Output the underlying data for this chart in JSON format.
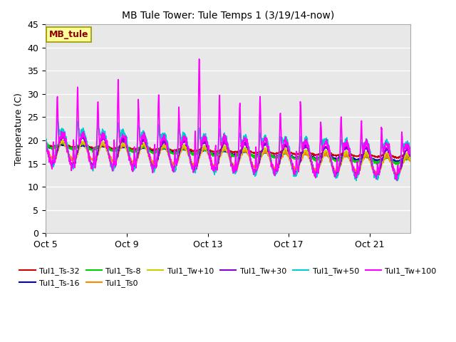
{
  "title": "MB Tule Tower: Tule Temps 1 (3/19/14-now)",
  "ylabel": "Temperature (C)",
  "ylim": [
    0,
    45
  ],
  "yticks": [
    0,
    5,
    10,
    15,
    20,
    25,
    30,
    35,
    40,
    45
  ],
  "x_start_day": 5.0,
  "n_days": 18,
  "xtick_days": [
    5,
    9,
    13,
    17,
    21
  ],
  "xtick_labels": [
    "Oct 5",
    "Oct 9",
    "Oct 13",
    "Oct 17",
    "Oct 21"
  ],
  "annotation_text": "MB_tule",
  "annotation_color": "#8B0000",
  "annotation_bg": "#FFFF99",
  "annotation_border": "#999900",
  "background_plot": "#E8E8E8",
  "background_fig": "#FFFFFF",
  "grid_color": "#FFFFFF",
  "series": [
    {
      "label": "Tul1_Ts-32",
      "color": "#CC0000",
      "lw": 1.2
    },
    {
      "label": "Tul1_Ts-16",
      "color": "#0000CC",
      "lw": 1.2
    },
    {
      "label": "Tul1_Ts-8",
      "color": "#00CC00",
      "lw": 1.2
    },
    {
      "label": "Tul1_Ts0",
      "color": "#FF8800",
      "lw": 1.2
    },
    {
      "label": "Tul1_Tw+10",
      "color": "#CCCC00",
      "lw": 1.2
    },
    {
      "label": "Tul1_Tw+30",
      "color": "#8800CC",
      "lw": 1.2
    },
    {
      "label": "Tul1_Tw+50",
      "color": "#00CCCC",
      "lw": 1.2
    },
    {
      "label": "Tul1_Tw+100",
      "color": "#FF00FF",
      "lw": 1.2
    }
  ]
}
